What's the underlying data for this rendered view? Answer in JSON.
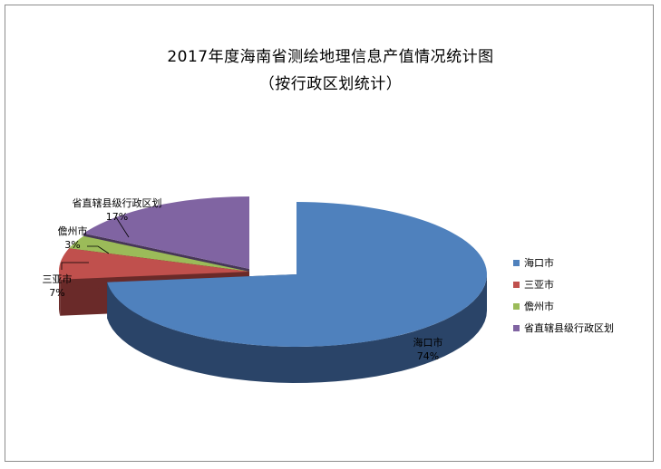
{
  "chart_data": {
    "type": "pie",
    "title": "2017年度海南省测绘地理信息产值情况统计图",
    "subtitle": "（按行政区划统计）",
    "categories": [
      "海口市",
      "三亚市",
      "儋州市",
      "省直辖县级行政区划"
    ],
    "values": [
      74,
      7,
      3,
      17
    ],
    "labels": [
      "74%",
      "7%",
      "3%",
      "17%"
    ],
    "colors": [
      "#4F81BD",
      "#C0504D",
      "#9BBB59",
      "#8064A2"
    ],
    "side_colors": [
      "#2A4468",
      "#6A2A29",
      "#56692F",
      "#473658"
    ],
    "legend_position": "right",
    "style": "3d-exploded"
  }
}
